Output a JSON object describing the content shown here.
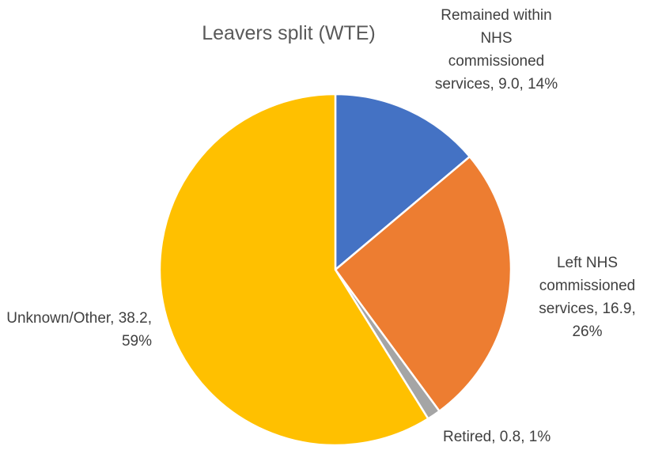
{
  "chart_data": {
    "type": "pie",
    "title": "Leavers split (WTE)",
    "categories": [
      "Remained within NHS commissioned services",
      "Left NHS commissioned services",
      "Retired",
      "Unknown/Other"
    ],
    "values": [
      9.0,
      16.9,
      0.8,
      38.2
    ],
    "value_labels": [
      "Remained within NHS commissioned services, 9.0, 14%",
      "Left NHS commissioned services, 16.9, 26%",
      "Retired, 0.8, 1%",
      "Unknown/Other, 38.2, 59%"
    ],
    "colors": [
      "#4472c4",
      "#ed7d31",
      "#a5a5a5",
      "#ffc000"
    ]
  }
}
